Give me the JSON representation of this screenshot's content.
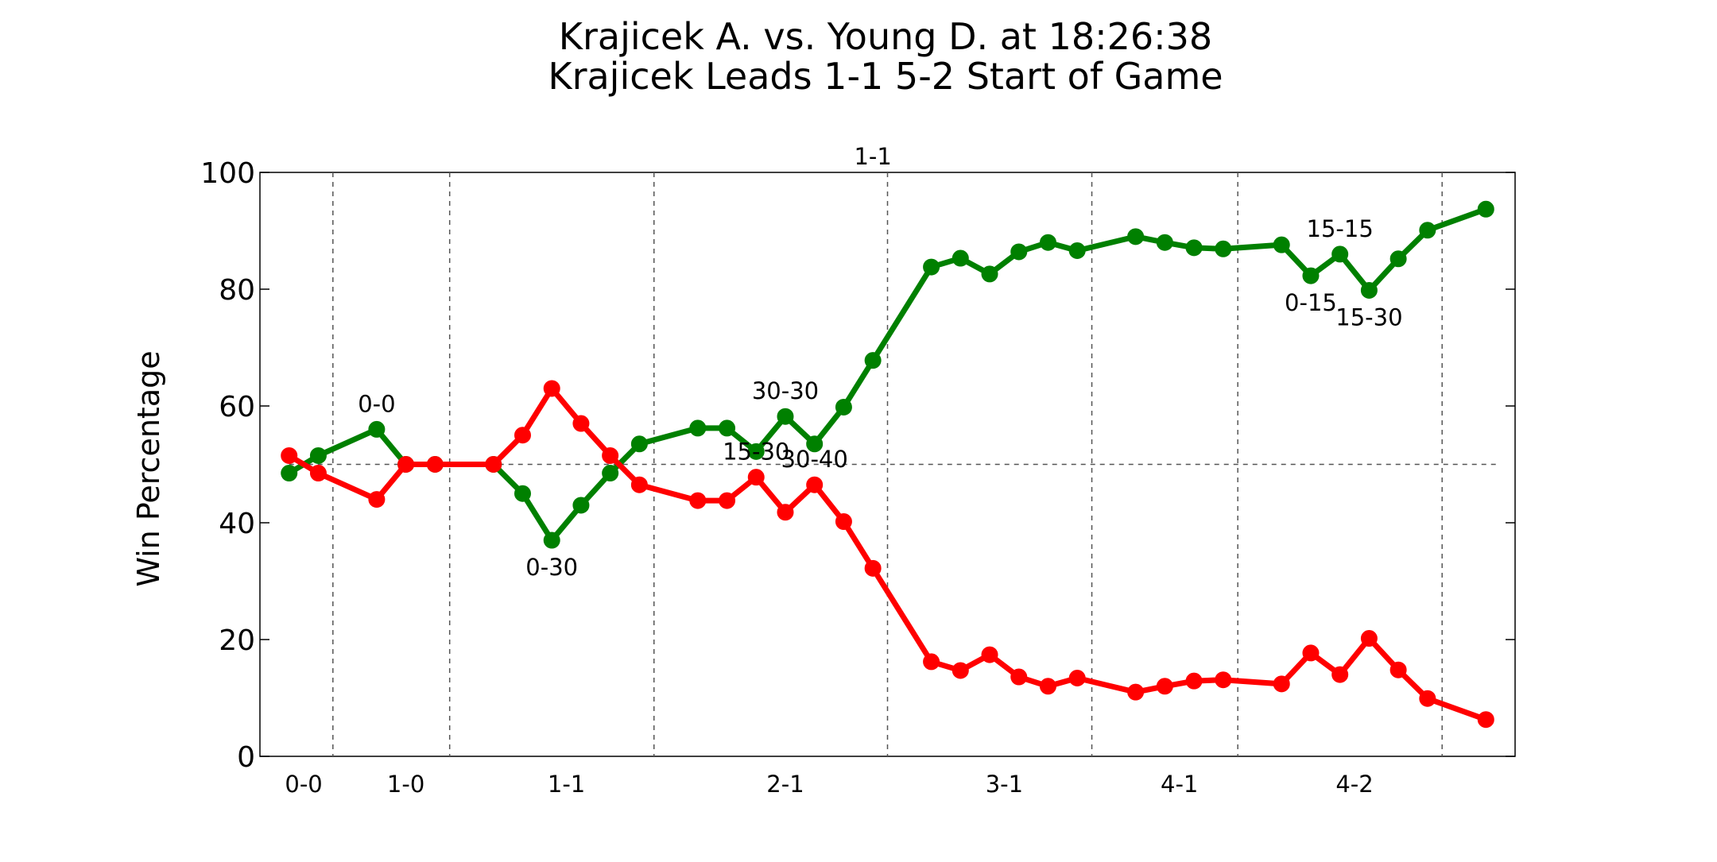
{
  "chart_data": {
    "type": "line",
    "title": "Krajicek A. vs. Young D. at 18:26:38",
    "subtitle": "Krajicek Leads 1-1 5-2 Start of Game",
    "xlabel": "",
    "ylabel": "Win Percentage",
    "xlim": [
      -1,
      42
    ],
    "ylim": [
      0,
      100
    ],
    "yticks": [
      0,
      20,
      40,
      60,
      80,
      100
    ],
    "grid": false,
    "reference_line_y": 50,
    "set_label": "1-1",
    "set_label_x": 20,
    "game_boundaries": [
      1.5,
      5.5,
      12.5,
      20.5,
      27.5,
      32.5,
      39.5
    ],
    "game_labels": [
      {
        "x": 0.5,
        "label": "0-0"
      },
      {
        "x": 4,
        "label": "1-0"
      },
      {
        "x": 9.5,
        "label": "1-1"
      },
      {
        "x": 17,
        "label": "2-1"
      },
      {
        "x": 24.5,
        "label": "3-1"
      },
      {
        "x": 30.5,
        "label": "4-1"
      },
      {
        "x": 36.5,
        "label": "4-2"
      }
    ],
    "series": [
      {
        "color": "#008000",
        "points": [
          [
            0,
            48.5
          ],
          [
            1,
            51.5
          ],
          [
            3,
            56
          ],
          [
            4,
            50
          ],
          [
            5,
            50
          ],
          [
            7,
            50
          ],
          [
            8,
            45
          ],
          [
            9,
            37
          ],
          [
            10,
            43
          ],
          [
            11,
            48.5
          ],
          [
            12,
            53.5
          ],
          [
            14,
            56.2
          ],
          [
            15,
            56.2
          ],
          [
            16,
            52.2
          ],
          [
            17,
            58.2
          ],
          [
            18,
            53.5
          ],
          [
            19,
            59.8
          ],
          [
            20,
            67.8
          ],
          [
            22,
            83.8
          ],
          [
            23,
            85.3
          ],
          [
            24,
            82.6
          ],
          [
            25,
            86.4
          ],
          [
            26,
            88
          ],
          [
            27,
            86.6
          ],
          [
            29,
            89
          ],
          [
            30,
            88
          ],
          [
            31,
            87.1
          ],
          [
            32,
            86.9
          ],
          [
            34,
            87.6
          ],
          [
            35,
            82.3
          ],
          [
            36,
            86
          ],
          [
            37,
            79.8
          ],
          [
            38,
            85.2
          ],
          [
            39,
            90.1
          ],
          [
            41,
            93.7
          ]
        ]
      },
      {
        "color": "#ff0000",
        "points": [
          [
            0,
            51.5
          ],
          [
            1,
            48.5
          ],
          [
            3,
            44
          ],
          [
            4,
            50
          ],
          [
            5,
            50
          ],
          [
            7,
            50
          ],
          [
            8,
            55
          ],
          [
            9,
            63
          ],
          [
            10,
            57
          ],
          [
            11,
            51.5
          ],
          [
            12,
            46.5
          ],
          [
            14,
            43.8
          ],
          [
            15,
            43.8
          ],
          [
            16,
            47.8
          ],
          [
            17,
            41.8
          ],
          [
            18,
            46.5
          ],
          [
            19,
            40.2
          ],
          [
            20,
            32.2
          ],
          [
            22,
            16.2
          ],
          [
            23,
            14.7
          ],
          [
            24,
            17.4
          ],
          [
            25,
            13.6
          ],
          [
            26,
            12
          ],
          [
            27,
            13.4
          ],
          [
            29,
            11
          ],
          [
            30,
            12
          ],
          [
            31,
            12.9
          ],
          [
            32,
            13.1
          ],
          [
            34,
            12.4
          ],
          [
            35,
            17.7
          ],
          [
            36,
            14
          ],
          [
            37,
            20.2
          ],
          [
            38,
            14.8
          ],
          [
            39,
            9.9
          ],
          [
            41,
            6.3
          ]
        ]
      }
    ],
    "annotations": [
      {
        "text": "0-0",
        "x": 3,
        "y": 56,
        "pos": "above"
      },
      {
        "text": "0-30",
        "x": 9,
        "y": 37,
        "pos": "below"
      },
      {
        "text": "30-30",
        "x": 17,
        "y": 58.2,
        "pos": "above"
      },
      {
        "text": "15-30",
        "x": 16,
        "y": 47.8,
        "pos": "above"
      },
      {
        "text": "30-40",
        "x": 18,
        "y": 46.5,
        "pos": "above"
      },
      {
        "text": "15-15",
        "x": 36,
        "y": 86,
        "pos": "above"
      },
      {
        "text": "0-15",
        "x": 35,
        "y": 82.3,
        "pos": "below"
      },
      {
        "text": "15-30",
        "x": 37,
        "y": 79.8,
        "pos": "below"
      }
    ]
  }
}
